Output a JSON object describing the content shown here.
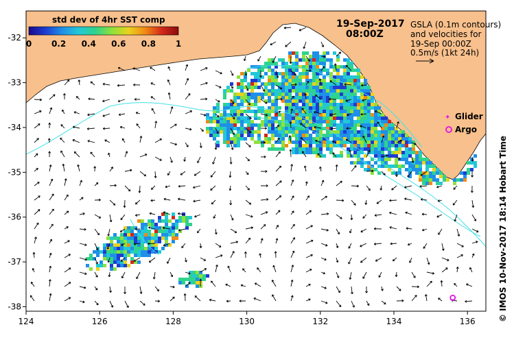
{
  "colorbar": {
    "title": "std dev of 4hr SST comp",
    "ticks": [
      "0",
      "0.2",
      "0.4",
      "0.6",
      "0.8",
      "1"
    ],
    "colors": [
      "#1a0a8c",
      "#1e3ccf",
      "#1f8fe8",
      "#22c8d8",
      "#2fd38c",
      "#8fe13a",
      "#e9d21e",
      "#f08a16",
      "#d2271a",
      "#8a0c0c"
    ]
  },
  "header": {
    "date": "19-Sep-2017",
    "time": "08:00Z"
  },
  "info": {
    "lines": [
      "GSLA (0.1m contours)",
      "and velocities for",
      "19-Sep 00:00Z",
      "0.5m/s (1kt 24h)"
    ]
  },
  "legend": {
    "glider": "Glider",
    "argo": "Argo",
    "marker_color": "#e020e0"
  },
  "axes": {
    "lon_ticks": [
      "124",
      "126",
      "128",
      "130",
      "132",
      "134",
      "136"
    ],
    "lat_ticks": [
      "-32",
      "-33",
      "-34",
      "-35",
      "-36",
      "-37",
      "-38"
    ],
    "lon_range": [
      124,
      136.5
    ],
    "lat_range": [
      -38.1,
      -31.4
    ]
  },
  "credit": "© IMOS 10-Nov-2017 18:14 Hobart Time",
  "colors": {
    "land": "#f8c08c",
    "sea": "#ffffff",
    "contour": "#40e0e8"
  },
  "argo_float": {
    "lon": 135.6,
    "lat": -37.8
  }
}
